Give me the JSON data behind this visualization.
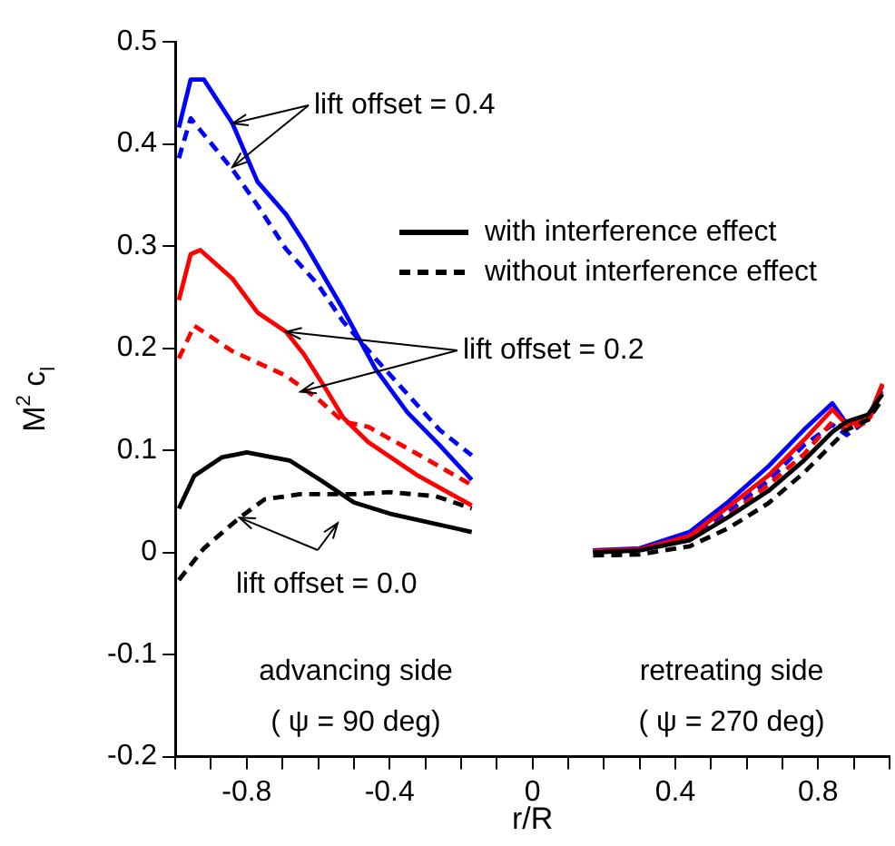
{
  "chart_data": {
    "type": "line",
    "xlabel": "r/R",
    "ylabel": "M$^{2}$ c$_{l}$",
    "xlim": [
      -1,
      1
    ],
    "ylim": [
      -0.2,
      0.5
    ],
    "xticks": [
      {
        "value": -1,
        "label": null
      },
      {
        "value": -0.9,
        "label": null
      },
      -0.8,
      {
        "value": -0.7,
        "label": null
      },
      {
        "value": -0.6,
        "label": null
      },
      {
        "value": -0.5,
        "label": null
      },
      -0.4,
      {
        "value": -0.3,
        "label": null
      },
      {
        "value": -0.2,
        "label": null
      },
      {
        "value": -0.1,
        "label": null
      },
      0,
      {
        "value": 0.1,
        "label": null
      },
      {
        "value": 0.2,
        "label": null
      },
      {
        "value": 0.3,
        "label": null
      },
      0.4,
      {
        "value": 0.5,
        "label": null
      },
      {
        "value": 0.6,
        "label": null
      },
      {
        "value": 0.7,
        "label": null
      },
      0.8,
      {
        "value": 0.9,
        "label": null
      },
      {
        "value": 1,
        "label": null
      }
    ],
    "yticks": [
      -0.2,
      -0.1,
      0,
      0.1,
      0.2,
      0.3,
      0.4,
      0.5
    ],
    "grid": false,
    "legend": "top right",
    "series": [
      {
        "name": "with interference effect",
        "color": "#000000",
        "line_style": "solid"
      },
      {
        "name": "without interference effect",
        "color": "#000000",
        "line_style": "dashed"
      },
      {
        "color": "#0000ff",
        "line_style": "solid",
        "x": [
          -0.99,
          -0.957,
          -0.92,
          -0.84,
          -0.77,
          -0.69,
          -0.64,
          -0.53,
          -0.44,
          -0.35,
          -0.26,
          -0.17,
          0,
          0.17,
          0.3,
          0.44,
          0.55,
          0.66,
          0.76,
          0.84,
          0.88,
          0.94,
          0.98
        ],
        "values": [
          0.416,
          0.463,
          0.463,
          0.42,
          0.363,
          0.331,
          0.304,
          0.238,
          0.18,
          0.137,
          0.105,
          0.071,
          null,
          0.002,
          0.004,
          0.02,
          0.05,
          0.084,
          0.12,
          0.146,
          0.126,
          0.13,
          0.164
        ]
      },
      {
        "color": "#0000ff",
        "line_style": "dashed",
        "x": [
          -0.99,
          -0.957,
          -0.84,
          -0.77,
          -0.69,
          -0.6,
          -0.53,
          -0.44,
          -0.35,
          -0.26,
          -0.17,
          0,
          0.17,
          0.3,
          0.44,
          0.55,
          0.66,
          0.76,
          0.84,
          0.88,
          0.94,
          0.98
        ],
        "values": [
          0.386,
          0.425,
          0.375,
          0.34,
          0.297,
          0.262,
          0.226,
          0.19,
          0.155,
          0.12,
          0.095,
          null,
          0.002,
          0.003,
          0.015,
          0.04,
          0.07,
          0.105,
          0.125,
          0.115,
          0.13,
          0.16
        ]
      },
      {
        "color": "#ff0000",
        "line_style": "solid",
        "x": [
          -0.99,
          -0.957,
          -0.93,
          -0.84,
          -0.77,
          -0.69,
          -0.64,
          -0.58,
          -0.53,
          -0.46,
          -0.32,
          -0.17,
          0,
          0.17,
          0.3,
          0.44,
          0.55,
          0.66,
          0.76,
          0.84,
          0.88,
          0.94,
          0.98
        ],
        "values": [
          0.247,
          0.292,
          0.296,
          0.268,
          0.235,
          0.216,
          0.194,
          0.161,
          0.132,
          0.108,
          0.075,
          0.046,
          null,
          0.001,
          0.003,
          0.016,
          0.045,
          0.075,
          0.11,
          0.14,
          0.125,
          0.13,
          0.165
        ]
      },
      {
        "color": "#ff0000",
        "line_style": "dashed",
        "x": [
          -0.99,
          -0.947,
          -0.84,
          -0.69,
          -0.6,
          -0.53,
          -0.46,
          -0.32,
          -0.17,
          0,
          0.17,
          0.3,
          0.44,
          0.55,
          0.66,
          0.76,
          0.84,
          0.88,
          0.94,
          0.98
        ],
        "values": [
          0.19,
          0.222,
          0.197,
          0.173,
          0.15,
          0.128,
          0.123,
          0.096,
          0.066,
          null,
          0.001,
          0.003,
          0.012,
          0.036,
          0.066,
          0.096,
          0.128,
          0.12,
          0.128,
          0.16
        ]
      },
      {
        "color": "#000000",
        "line_style": "solid",
        "x": [
          -0.99,
          -0.947,
          -0.87,
          -0.8,
          -0.68,
          -0.59,
          -0.5,
          -0.4,
          -0.17,
          0,
          0.17,
          0.3,
          0.44,
          0.55,
          0.66,
          0.76,
          0.84,
          0.88,
          0.94,
          0.98
        ],
        "values": [
          0.043,
          0.075,
          0.093,
          0.098,
          0.09,
          0.07,
          0.049,
          0.038,
          0.02,
          null,
          0,
          0.002,
          0.012,
          0.035,
          0.06,
          0.09,
          0.118,
          0.128,
          0.135,
          0.155
        ]
      },
      {
        "color": "#000000",
        "line_style": "dashed",
        "x": [
          -0.99,
          -0.92,
          -0.82,
          -0.75,
          -0.65,
          -0.5,
          -0.4,
          -0.27,
          -0.17,
          0,
          0.17,
          0.3,
          0.44,
          0.55,
          0.66,
          0.76,
          0.84,
          0.88,
          0.94,
          0.98
        ],
        "values": [
          -0.027,
          0.004,
          0.034,
          0.052,
          0.057,
          0.057,
          0.059,
          0.055,
          0.043,
          null,
          -0.003,
          -0.002,
          0.006,
          0.024,
          0.048,
          0.078,
          0.106,
          0.12,
          0.13,
          0.15
        ]
      }
    ],
    "annotations": [
      {
        "text": "lift offset = 0.4",
        "x": -0.84,
        "y": 0.42
      },
      {
        "text": "lift offset = 0.2",
        "x": -0.69,
        "y": 0.216
      },
      {
        "text": "lift offset = 0.0",
        "x": -0.82,
        "y": 0.034
      },
      "advancing side",
      "( ψ = 90 deg)",
      "retreating side",
      "( ψ = 270 deg)"
    ]
  }
}
